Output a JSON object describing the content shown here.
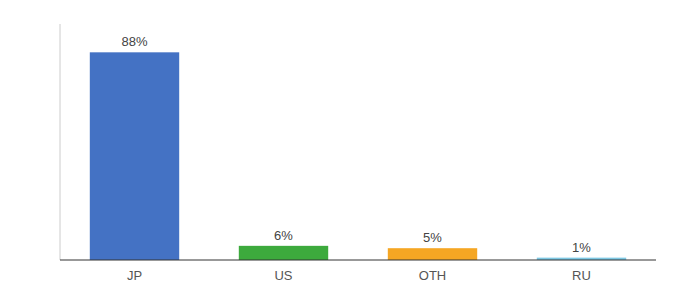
{
  "chart_data": {
    "type": "bar",
    "categories": [
      "JP",
      "US",
      "OTH",
      "RU"
    ],
    "values": [
      88,
      6,
      5,
      1
    ],
    "value_labels": [
      "88%",
      "6%",
      "5%",
      "1%"
    ],
    "colors": [
      "#4472c4",
      "#3daa3d",
      "#f5a623",
      "#7ec8e3"
    ],
    "ylim": [
      0,
      100
    ],
    "data_labels": true,
    "tick_labels": "x",
    "grid": false
  }
}
